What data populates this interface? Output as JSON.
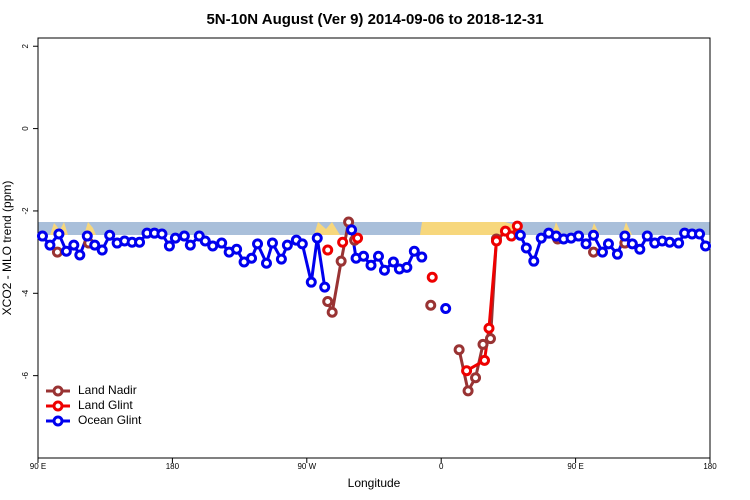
{
  "chart_data": {
    "type": "line",
    "title": "5N-10N August (Ver 9)   2014-09-06 to 2018-12-31",
    "x_label": "Longitude",
    "y_label": "XCO2 - MLO trend (ppm)",
    "xlim": [
      90,
      540
    ],
    "xticks": [
      {
        "value": 90,
        "label": "90 E"
      },
      {
        "value": 180,
        "label": "180"
      },
      {
        "value": 270,
        "label": "90 W"
      },
      {
        "value": 360,
        "label": "0"
      },
      {
        "value": 450,
        "label": "90 E"
      },
      {
        "value": 540,
        "label": "180"
      }
    ],
    "ylim": [
      -8.0,
      2.2
    ],
    "yticks": [
      -6,
      -4,
      -2,
      0,
      2
    ],
    "legend": "bottom-left",
    "series": [
      {
        "name": "Land Nadir",
        "color": "#993333",
        "x": [
          103,
          null,
          124,
          null,
          284,
          287,
          293,
          298,
          302,
          null,
          353,
          null,
          372,
          378,
          383,
          388,
          393,
          397,
          null,
          438,
          null,
          462,
          null,
          483
        ],
        "values": [
          -3.0,
          null,
          -2.78,
          null,
          -4.2,
          -4.46,
          -3.22,
          -2.27,
          -2.71,
          null,
          -4.29,
          null,
          -5.37,
          -6.37,
          -6.05,
          -5.24,
          -5.1,
          -2.68,
          null,
          -2.68,
          null,
          -3.0,
          null,
          -2.78
        ]
      },
      {
        "name": "Land Glint",
        "color": "#ee0000",
        "x": [
          284,
          null,
          294,
          null,
          304,
          null,
          354,
          null,
          377,
          389,
          392,
          397,
          403,
          407,
          411
        ],
        "values": [
          -2.95,
          null,
          -2.76,
          null,
          -2.66,
          null,
          -3.61,
          null,
          -5.88,
          -5.63,
          -4.85,
          -2.73,
          -2.49,
          -2.61,
          -2.37
        ]
      },
      {
        "name": "Ocean Glint",
        "color": "#0000ee",
        "x": [
          93,
          98,
          104,
          109,
          114,
          118,
          123,
          128,
          133,
          138,
          143,
          148,
          153,
          158,
          163,
          168,
          173,
          178,
          182,
          188,
          192,
          198,
          202,
          207,
          213,
          218,
          223,
          228,
          233,
          237,
          243,
          247,
          253,
          257,
          263,
          267,
          273,
          277,
          282,
          null,
          300,
          303,
          308,
          313,
          318,
          322,
          328,
          332,
          337,
          342,
          347,
          null,
          363,
          null,
          413,
          417,
          422,
          427,
          432,
          437,
          442,
          447,
          452,
          457,
          462,
          468,
          472,
          478,
          483,
          488,
          493,
          498,
          503,
          508,
          513,
          519,
          523,
          528,
          533,
          537
        ],
        "values": [
          -2.61,
          -2.83,
          -2.56,
          -2.98,
          -2.83,
          -3.07,
          -2.61,
          -2.83,
          -2.95,
          -2.59,
          -2.78,
          -2.73,
          -2.76,
          -2.76,
          -2.54,
          -2.54,
          -2.56,
          -2.85,
          -2.66,
          -2.61,
          -2.83,
          -2.61,
          -2.73,
          -2.85,
          -2.78,
          -3.0,
          -2.93,
          -3.24,
          -3.15,
          -2.8,
          -3.27,
          -2.78,
          -3.17,
          -2.83,
          -2.71,
          -2.8,
          -3.73,
          -2.66,
          -3.85,
          null,
          -2.46,
          -3.15,
          -3.1,
          -3.32,
          -3.1,
          -3.44,
          -3.24,
          -3.41,
          -3.37,
          -2.98,
          -3.12,
          null,
          -4.37,
          null,
          -2.59,
          -2.9,
          -3.22,
          -2.66,
          -2.54,
          -2.61,
          -2.68,
          -2.66,
          -2.61,
          -2.8,
          -2.59,
          -3.0,
          -2.8,
          -3.05,
          -2.61,
          -2.8,
          -2.93,
          -2.61,
          -2.78,
          -2.73,
          -2.76,
          -2.78,
          -2.54,
          -2.56,
          -2.56,
          -2.85
        ]
      }
    ]
  }
}
